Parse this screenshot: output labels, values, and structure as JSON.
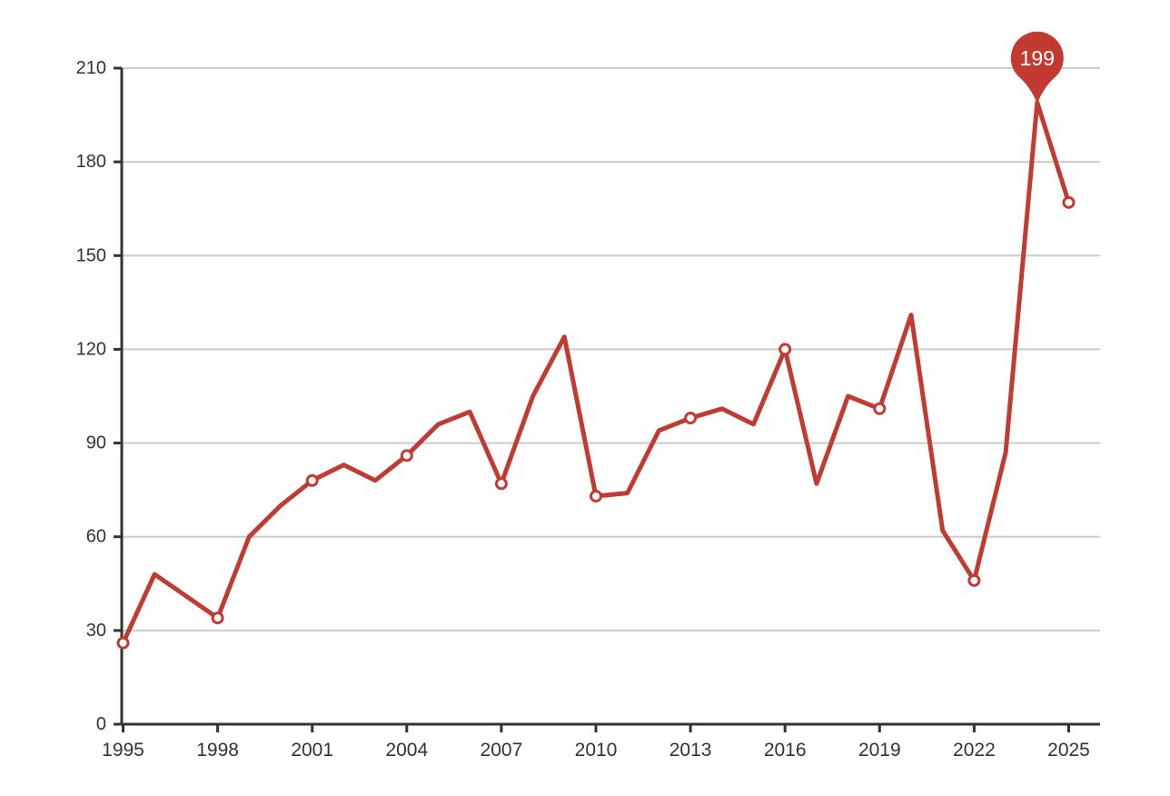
{
  "chart_data": {
    "type": "line",
    "title": "",
    "xlabel": "",
    "ylabel": "",
    "x": [
      1995,
      1996,
      1997,
      1998,
      1999,
      2000,
      2001,
      2002,
      2003,
      2004,
      2005,
      2006,
      2007,
      2008,
      2009,
      2010,
      2011,
      2012,
      2013,
      2014,
      2015,
      2016,
      2017,
      2018,
      2019,
      2020,
      2021,
      2022,
      2023,
      2024,
      2025
    ],
    "values": [
      26,
      48,
      41,
      34,
      60,
      70,
      78,
      83,
      78,
      86,
      96,
      100,
      77,
      105,
      124,
      73,
      74,
      94,
      98,
      101,
      96,
      120,
      77,
      105,
      101,
      131,
      62,
      46,
      87,
      199,
      167
    ],
    "x_tick_labels": [
      "1995",
      "1998",
      "2001",
      "2004",
      "2007",
      "2010",
      "2013",
      "2016",
      "2019",
      "2022",
      "2025"
    ],
    "x_tick_years": [
      1995,
      1998,
      2001,
      2004,
      2007,
      2010,
      2013,
      2016,
      2019,
      2022,
      2025
    ],
    "y_tick_labels": [
      "0",
      "30",
      "60",
      "90",
      "120",
      "150",
      "180",
      "210"
    ],
    "y_ticks": [
      0,
      30,
      60,
      90,
      120,
      150,
      180,
      210
    ],
    "ylim": [
      0,
      210
    ],
    "xlim": [
      1995,
      2025
    ],
    "grid": true,
    "legend": false,
    "marker_years": [
      1995,
      1998,
      2001,
      2004,
      2007,
      2010,
      2013,
      2016,
      2019,
      2022,
      2025
    ],
    "callout": {
      "year": 2024,
      "value": 199,
      "label": "199"
    },
    "colors": {
      "line": "#c23b33",
      "marker_fill": "#ffffff",
      "marker_stroke": "#c23b33",
      "grid": "#cccccc",
      "axis": "#333333",
      "tick_label": "#333333",
      "callout_fill": "#c23b33",
      "callout_text": "#ffffff",
      "background": "#ffffff"
    }
  }
}
